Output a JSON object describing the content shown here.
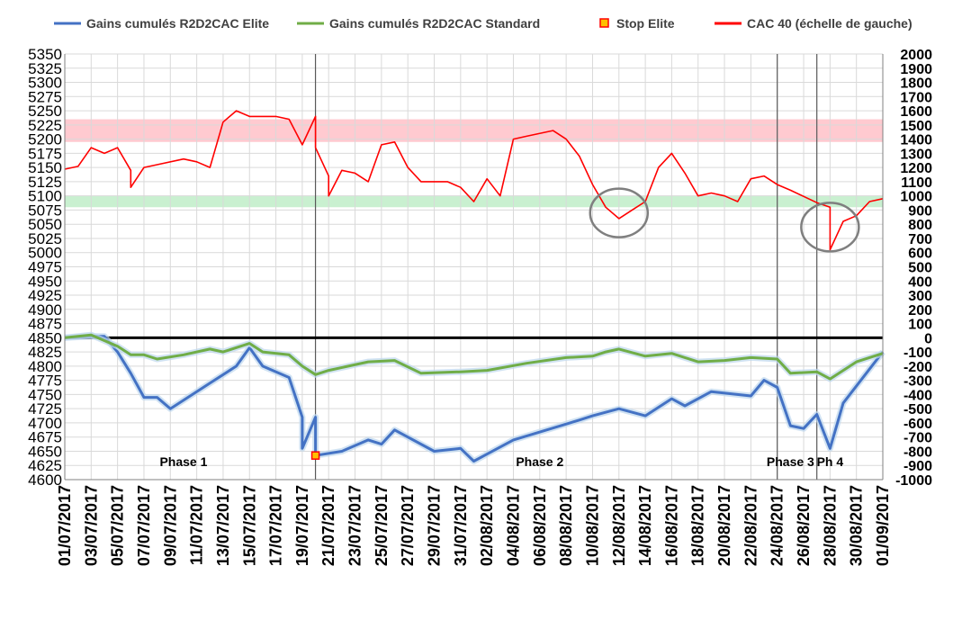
{
  "chart_data": {
    "type": "line",
    "legend": {
      "placement": "top",
      "items": [
        {
          "label": "Gains cumulés R2D2CAC Elite",
          "color": "#4472c4",
          "marker": "line"
        },
        {
          "label": "Gains cumulés R2D2CAC Standard",
          "color": "#70ad47",
          "marker": "line"
        },
        {
          "label": "Stop Elite",
          "color": "#ff0000",
          "marker": "square"
        },
        {
          "label": "CAC 40 (échelle de gauche)",
          "color": "#ff0000",
          "marker": "line"
        }
      ]
    },
    "y_left": {
      "min": 4600,
      "max": 5350,
      "step": 25,
      "ticks": [
        "5350",
        "5325",
        "5300",
        "5275",
        "5250",
        "5225",
        "5200",
        "5175",
        "5150",
        "5125",
        "5100",
        "5075",
        "5050",
        "5025",
        "5000",
        "4975",
        "4950",
        "4925",
        "4900",
        "4875",
        "4850",
        "4825",
        "4800",
        "4775",
        "4750",
        "4725",
        "4700",
        "4675",
        "4650",
        "4625",
        "4600"
      ]
    },
    "y_right": {
      "min": -1000,
      "max": 2000,
      "step": 100,
      "ticks": [
        "2000",
        "1900",
        "1800",
        "1700",
        "1600",
        "1500",
        "1400",
        "1300",
        "1200",
        "1100",
        "1000",
        "900",
        "800",
        "700",
        "600",
        "500",
        "400",
        "300",
        "200",
        "100",
        "0",
        "-100",
        "-200",
        "-300",
        "-400",
        "-500",
        "-600",
        "-700",
        "-800",
        "-900",
        "-1000"
      ]
    },
    "x_axis": {
      "type": "date",
      "min": "2017-07-01",
      "max": "2017-09-01",
      "ticks": [
        "01/07/2017",
        "03/07/2017",
        "05/07/2017",
        "07/07/2017",
        "09/07/2017",
        "11/07/2017",
        "13/07/2017",
        "15/07/2017",
        "17/07/2017",
        "19/07/2017",
        "21/07/2017",
        "23/07/2017",
        "25/07/2017",
        "27/07/2017",
        "29/07/2017",
        "31/07/2017",
        "02/08/2017",
        "04/08/2017",
        "06/08/2017",
        "08/08/2017",
        "10/08/2017",
        "12/08/2017",
        "14/08/2017",
        "16/08/2017",
        "18/08/2017",
        "20/08/2017",
        "22/08/2017",
        "24/08/2017",
        "26/08/2017",
        "28/08/2017",
        "30/08/2017",
        "01/09/2017"
      ]
    },
    "grid": true,
    "bands": [
      {
        "axis": "left",
        "from": 5195,
        "to": 5235,
        "color": "#ffc7ce"
      },
      {
        "axis": "left",
        "from": 5080,
        "to": 5100,
        "color": "#c6efce"
      }
    ],
    "zero_line": {
      "axis": "right",
      "value": 0,
      "color": "#000000"
    },
    "phase_lines": [
      "2017-07-20",
      "2017-08-24",
      "2017-08-27"
    ],
    "phases": [
      {
        "label": "Phase 1",
        "x": "2017-07-10"
      },
      {
        "label": "Phase 2",
        "x": "2017-08-06"
      },
      {
        "label": "Phase 3",
        "x": "2017-08-25"
      },
      {
        "label": "Ph 4",
        "x": "2017-08-28"
      }
    ],
    "ellipses": [
      {
        "x": "2017-08-12",
        "y": 5070,
        "axis": "left"
      },
      {
        "x": "2017-08-28",
        "y": 5045,
        "axis": "left"
      }
    ],
    "series": [
      {
        "name": "Gains cumulés R2D2CAC Elite",
        "axis": "right",
        "color": "#4472c4",
        "points": [
          [
            "2017-07-01",
            0
          ],
          [
            "2017-07-03",
            10
          ],
          [
            "2017-07-04",
            10
          ],
          [
            "2017-07-05",
            -100
          ],
          [
            "2017-07-06",
            -250
          ],
          [
            "2017-07-07",
            -420
          ],
          [
            "2017-07-08",
            -420
          ],
          [
            "2017-07-09",
            -500
          ],
          [
            "2017-07-12",
            -320
          ],
          [
            "2017-07-14",
            -200
          ],
          [
            "2017-07-15",
            -70
          ],
          [
            "2017-07-16",
            -200
          ],
          [
            "2017-07-18",
            -280
          ],
          [
            "2017-07-19",
            -560
          ],
          [
            "2017-07-19",
            -780
          ],
          [
            "2017-07-20",
            -560
          ],
          [
            "2017-07-20",
            -830
          ],
          [
            "2017-07-22",
            -800
          ],
          [
            "2017-07-24",
            -720
          ],
          [
            "2017-07-25",
            -750
          ],
          [
            "2017-07-26",
            -650
          ],
          [
            "2017-07-29",
            -800
          ],
          [
            "2017-07-31",
            -780
          ],
          [
            "2017-08-01",
            -870
          ],
          [
            "2017-08-04",
            -720
          ],
          [
            "2017-08-09",
            -580
          ],
          [
            "2017-08-10",
            -550
          ],
          [
            "2017-08-12",
            -500
          ],
          [
            "2017-08-14",
            -550
          ],
          [
            "2017-08-16",
            -430
          ],
          [
            "2017-08-17",
            -480
          ],
          [
            "2017-08-19",
            -380
          ],
          [
            "2017-08-22",
            -410
          ],
          [
            "2017-08-23",
            -300
          ],
          [
            "2017-08-24",
            -350
          ],
          [
            "2017-08-25",
            -620
          ],
          [
            "2017-08-26",
            -640
          ],
          [
            "2017-08-27",
            -540
          ],
          [
            "2017-08-28",
            -780
          ],
          [
            "2017-08-29",
            -460
          ],
          [
            "2017-09-01",
            -100
          ]
        ]
      },
      {
        "name": "Gains cumulés R2D2CAC Standard",
        "axis": "right",
        "color": "#70ad47",
        "points": [
          [
            "2017-07-01",
            0
          ],
          [
            "2017-07-03",
            20
          ],
          [
            "2017-07-05",
            -60
          ],
          [
            "2017-07-06",
            -120
          ],
          [
            "2017-07-07",
            -120
          ],
          [
            "2017-07-08",
            -150
          ],
          [
            "2017-07-10",
            -120
          ],
          [
            "2017-07-12",
            -80
          ],
          [
            "2017-07-13",
            -100
          ],
          [
            "2017-07-15",
            -40
          ],
          [
            "2017-07-16",
            -100
          ],
          [
            "2017-07-18",
            -120
          ],
          [
            "2017-07-19",
            -200
          ],
          [
            "2017-07-20",
            -260
          ],
          [
            "2017-07-21",
            -230
          ],
          [
            "2017-07-24",
            -170
          ],
          [
            "2017-07-26",
            -160
          ],
          [
            "2017-07-28",
            -250
          ],
          [
            "2017-07-31",
            -240
          ],
          [
            "2017-08-02",
            -230
          ],
          [
            "2017-08-05",
            -180
          ],
          [
            "2017-08-08",
            -140
          ],
          [
            "2017-08-10",
            -130
          ],
          [
            "2017-08-11",
            -100
          ],
          [
            "2017-08-12",
            -80
          ],
          [
            "2017-08-14",
            -130
          ],
          [
            "2017-08-16",
            -110
          ],
          [
            "2017-08-18",
            -170
          ],
          [
            "2017-08-20",
            -160
          ],
          [
            "2017-08-22",
            -140
          ],
          [
            "2017-08-24",
            -150
          ],
          [
            "2017-08-25",
            -250
          ],
          [
            "2017-08-27",
            -240
          ],
          [
            "2017-08-28",
            -290
          ],
          [
            "2017-08-30",
            -170
          ],
          [
            "2017-09-01",
            -110
          ]
        ]
      },
      {
        "name": "CAC 40 (échelle de gauche)",
        "axis": "left",
        "color": "#ff0000",
        "points": [
          [
            "2017-07-01",
            5147
          ],
          [
            "2017-07-02",
            5152
          ],
          [
            "2017-07-03",
            5185
          ],
          [
            "2017-07-04",
            5175
          ],
          [
            "2017-07-05",
            5185
          ],
          [
            "2017-07-06",
            5145
          ],
          [
            "2017-07-06",
            5115
          ],
          [
            "2017-07-07",
            5150
          ],
          [
            "2017-07-08",
            5155
          ],
          [
            "2017-07-10",
            5165
          ],
          [
            "2017-07-11",
            5160
          ],
          [
            "2017-07-12",
            5150
          ],
          [
            "2017-07-13",
            5230
          ],
          [
            "2017-07-14",
            5250
          ],
          [
            "2017-07-15",
            5240
          ],
          [
            "2017-07-17",
            5240
          ],
          [
            "2017-07-18",
            5235
          ],
          [
            "2017-07-19",
            5190
          ],
          [
            "2017-07-20",
            5240
          ],
          [
            "2017-07-20",
            5185
          ],
          [
            "2017-07-21",
            5135
          ],
          [
            "2017-07-21",
            5100
          ],
          [
            "2017-07-22",
            5145
          ],
          [
            "2017-07-23",
            5140
          ],
          [
            "2017-07-24",
            5125
          ],
          [
            "2017-07-25",
            5190
          ],
          [
            "2017-07-26",
            5195
          ],
          [
            "2017-07-27",
            5150
          ],
          [
            "2017-07-28",
            5125
          ],
          [
            "2017-07-30",
            5125
          ],
          [
            "2017-07-31",
            5115
          ],
          [
            "2017-08-01",
            5090
          ],
          [
            "2017-08-02",
            5130
          ],
          [
            "2017-08-03",
            5100
          ],
          [
            "2017-08-04",
            5200
          ],
          [
            "2017-08-05",
            5205
          ],
          [
            "2017-08-07",
            5215
          ],
          [
            "2017-08-08",
            5200
          ],
          [
            "2017-08-09",
            5170
          ],
          [
            "2017-08-10",
            5120
          ],
          [
            "2017-08-11",
            5080
          ],
          [
            "2017-08-12",
            5060
          ],
          [
            "2017-08-13",
            5075
          ],
          [
            "2017-08-14",
            5090
          ],
          [
            "2017-08-15",
            5150
          ],
          [
            "2017-08-16",
            5175
          ],
          [
            "2017-08-17",
            5140
          ],
          [
            "2017-08-18",
            5100
          ],
          [
            "2017-08-19",
            5105
          ],
          [
            "2017-08-20",
            5100
          ],
          [
            "2017-08-21",
            5090
          ],
          [
            "2017-08-22",
            5130
          ],
          [
            "2017-08-23",
            5135
          ],
          [
            "2017-08-24",
            5120
          ],
          [
            "2017-08-25",
            5110
          ],
          [
            "2017-08-27",
            5088
          ],
          [
            "2017-08-28",
            5080
          ],
          [
            "2017-08-28",
            5005
          ],
          [
            "2017-08-29",
            5055
          ],
          [
            "2017-08-30",
            5065
          ],
          [
            "2017-08-31",
            5090
          ],
          [
            "2017-09-01",
            5095
          ]
        ]
      }
    ],
    "markers": [
      {
        "name": "Stop Elite",
        "axis": "right",
        "x": "2017-07-20",
        "y": -830
      }
    ]
  }
}
